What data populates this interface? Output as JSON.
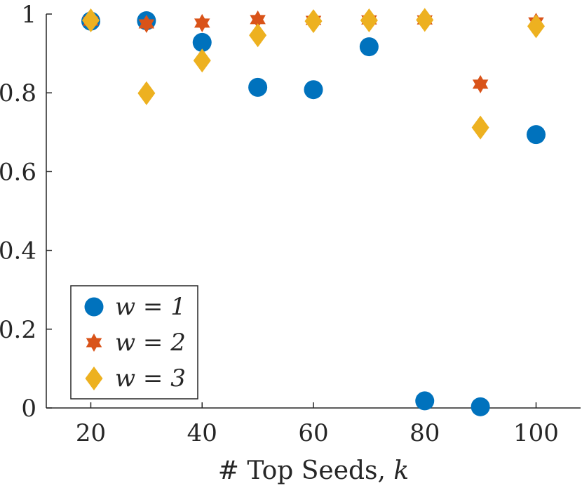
{
  "chart_data": {
    "type": "scatter",
    "title": "",
    "xlabel": "# Top Seeds, k",
    "ylabel": "",
    "xlim": [
      12,
      108
    ],
    "ylim": [
      0,
      1
    ],
    "x_ticks": [
      20,
      40,
      60,
      80,
      100
    ],
    "y_ticks": [
      0,
      0.2,
      0.4,
      0.6,
      0.8,
      1
    ],
    "x_tick_labels": [
      "20",
      "40",
      "60",
      "80",
      "100"
    ],
    "y_tick_labels": [
      "0",
      "0.2",
      "0.4",
      "0.6",
      "0.8",
      "1"
    ],
    "grid": false,
    "legend_position": "bottom-left",
    "series": [
      {
        "name": "w = 1",
        "color": "#0072bd",
        "marker": "circle",
        "x": [
          20,
          30,
          40,
          50,
          60,
          70,
          80,
          90,
          100
        ],
        "y": [
          0.982,
          0.983,
          0.928,
          0.814,
          0.808,
          0.917,
          0.018,
          0.003,
          0.694
        ]
      },
      {
        "name": "w = 2",
        "color": "#d95319",
        "marker": "hexagram",
        "x": [
          20,
          30,
          40,
          50,
          60,
          70,
          80,
          90,
          100
        ],
        "y": [
          0.982,
          0.975,
          0.977,
          0.986,
          0.984,
          0.985,
          0.985,
          0.822,
          0.98
        ]
      },
      {
        "name": "w = 3",
        "color": "#edb120",
        "marker": "diamond",
        "x": [
          20,
          30,
          40,
          50,
          60,
          70,
          80,
          90,
          100
        ],
        "y": [
          0.984,
          0.799,
          0.882,
          0.946,
          0.982,
          0.984,
          0.985,
          0.712,
          0.969
        ]
      }
    ]
  }
}
